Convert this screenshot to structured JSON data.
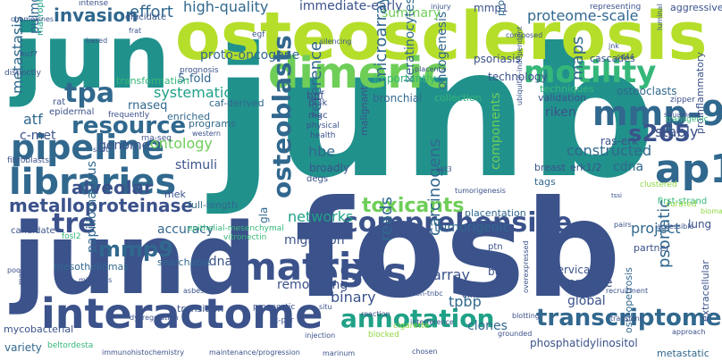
{
  "palette": {
    "dark_purple": "#440154",
    "indigo": "#3b528b",
    "blue": "#31688e",
    "teal": "#21918c",
    "green": "#35b779",
    "lime": "#90d743",
    "yellow": "#d6e21a"
  },
  "words": [
    {
      "text": "junb",
      "color": "#21918c"
    },
    {
      "text": "fosb",
      "color": "#3b528b"
    },
    {
      "text": "jun",
      "color": "#21918c"
    },
    {
      "text": "osteosclerosis",
      "color": "#b5de2b"
    },
    {
      "text": "jund",
      "color": "#3b528b"
    },
    {
      "text": "dimeric",
      "color": "#6ece58"
    },
    {
      "text": "motility",
      "color": "#35b779"
    },
    {
      "text": "pipeline",
      "color": "#31688e"
    },
    {
      "text": "libraries",
      "color": "#31688e"
    },
    {
      "text": "interactome",
      "color": "#3b528b"
    },
    {
      "text": "ests",
      "color": "#3b528b"
    },
    {
      "text": "matrix",
      "color": "#3b528b"
    },
    {
      "text": "comprehensive",
      "color": "#3b528b"
    },
    {
      "text": "annotation",
      "color": "#1fa187"
    },
    {
      "text": "transcriptome",
      "color": "#31688e"
    },
    {
      "text": "mmp-9",
      "color": "#31688e"
    },
    {
      "text": "ap1",
      "color": "#31688e"
    },
    {
      "text": "s265",
      "color": "#3b528b"
    },
    {
      "text": "tpa",
      "color": "#31688e"
    },
    {
      "text": "resource",
      "color": "#31688e"
    },
    {
      "text": "tre",
      "color": "#3b528b"
    },
    {
      "text": "mmp9",
      "color": "#31688e"
    },
    {
      "text": "osteoblasts",
      "color": "#31688e"
    },
    {
      "text": "metalloproteinase",
      "color": "#3b528b"
    },
    {
      "text": "alveolar",
      "color": "#3b528b"
    },
    {
      "text": "invasion",
      "color": "#31688e"
    },
    {
      "text": "effort",
      "color": "#31688e"
    },
    {
      "text": "high-quality",
      "color": "#31688e"
    },
    {
      "text": "immediate-early",
      "color": "#3b528b"
    },
    {
      "text": "proteome-scale",
      "color": "#31688e"
    },
    {
      "text": "aggressive",
      "color": "#3b528b"
    },
    {
      "text": "summary",
      "color": "#6ece58"
    },
    {
      "text": "proto-oncogene",
      "color": "#31688e"
    },
    {
      "text": "systematic",
      "color": "#1fa187"
    },
    {
      "text": "rnaseq",
      "color": "#31688e"
    },
    {
      "text": "ontology",
      "color": "#6ece58"
    },
    {
      "text": "genome",
      "color": "#3b528b"
    },
    {
      "text": "stimuli",
      "color": "#3b528b"
    },
    {
      "text": "atf",
      "color": "#31688e"
    },
    {
      "text": "metastasis",
      "color": "#31688e"
    },
    {
      "text": "c-met",
      "color": "#3b528b"
    },
    {
      "text": "pulmonary",
      "color": "#31688e"
    },
    {
      "text": "riken",
      "color": "#3b528b"
    },
    {
      "text": "stably",
      "color": "#3b528b"
    },
    {
      "text": "constructed",
      "color": "#31688e"
    },
    {
      "text": "ras-erk",
      "color": "#3b528b"
    },
    {
      "text": "maps",
      "color": "#31688e"
    },
    {
      "text": "microarray",
      "color": "#31688e"
    },
    {
      "text": "oncogenesis",
      "color": "#31688e"
    },
    {
      "text": "keratinocytes",
      "color": "#31688e"
    },
    {
      "text": "hbe",
      "color": "#31688e"
    },
    {
      "text": "reference",
      "color": "#31688e"
    },
    {
      "text": "broadly",
      "color": "#3b528b"
    },
    {
      "text": "networks",
      "color": "#1fa187"
    },
    {
      "text": "migration",
      "color": "#3b528b"
    },
    {
      "text": "toxicants",
      "color": "#6ece58"
    },
    {
      "text": "reads",
      "color": "#31688e"
    },
    {
      "text": "carcinogens",
      "color": "#31688e"
    },
    {
      "text": "array",
      "color": "#3b528b"
    },
    {
      "text": "binary",
      "color": "#3b528b"
    },
    {
      "text": "tpbp",
      "color": "#31688e"
    },
    {
      "text": "psoriatic",
      "color": "#31688e"
    },
    {
      "text": "project",
      "color": "#31688e"
    },
    {
      "text": "cdna",
      "color": "#31688e"
    },
    {
      "text": "accuracy",
      "color": "#31688e"
    },
    {
      "text": "remodeling",
      "color": "#3b528b"
    },
    {
      "text": "tumorigenic",
      "color": "#31688e"
    },
    {
      "text": "papillomavirus",
      "color": "#31688e"
    },
    {
      "text": "cdnas",
      "color": "#3b528b"
    },
    {
      "text": "bronchial",
      "color": "#31688e"
    },
    {
      "text": "gla",
      "color": "#31688e"
    },
    {
      "text": "clones",
      "color": "#31688e"
    },
    {
      "text": "variety",
      "color": "#31688e"
    },
    {
      "text": "osteoclasts",
      "color": "#31688e"
    },
    {
      "text": "5-fold",
      "color": "#31688e"
    },
    {
      "text": "hpf",
      "color": "#3b528b"
    },
    {
      "text": "mek",
      "color": "#3b528b"
    },
    {
      "text": "malignant",
      "color": "#3b528b"
    },
    {
      "text": "components",
      "color": "#6ece58"
    },
    {
      "text": "lung",
      "color": "#3b528b"
    },
    {
      "text": "cervical",
      "color": "#3b528b"
    },
    {
      "text": "precise",
      "color": "#3b528b"
    },
    {
      "text": "global",
      "color": "#3b528b"
    },
    {
      "text": "build",
      "color": "#3b528b"
    },
    {
      "text": "phosphatidylinositol",
      "color": "#3b528b"
    },
    {
      "text": "transition",
      "color": "#3b528b"
    },
    {
      "text": "mesotheliomas",
      "color": "#31688e"
    },
    {
      "text": "searchable",
      "color": "#31688e"
    },
    {
      "text": "mycobacterial",
      "color": "#3b528b"
    },
    {
      "text": "full-length",
      "color": "#31688e"
    },
    {
      "text": "extracellular",
      "color": "#3b528b"
    },
    {
      "text": "proinflammatory",
      "color": "#3b528b"
    },
    {
      "text": "osteopetrosis",
      "color": "#31688e"
    },
    {
      "text": "metastatic",
      "color": "#31688e"
    },
    {
      "text": "mmp1",
      "color": "#3b528b"
    },
    {
      "text": "technology",
      "color": "#3b528b"
    },
    {
      "text": "placentation",
      "color": "#31688e"
    },
    {
      "text": "collection",
      "color": "#35b779"
    },
    {
      "text": "validation",
      "color": "#3b528b"
    },
    {
      "text": "techniques",
      "color": "#35b779"
    },
    {
      "text": "importantly",
      "color": "#35b779"
    },
    {
      "text": "psoriasis",
      "color": "#3b528b"
    },
    {
      "text": "cascades",
      "color": "#3b528b"
    },
    {
      "text": "profiles",
      "color": "#31688e"
    },
    {
      "text": "erk1/2",
      "color": "#3b528b"
    },
    {
      "text": "breast",
      "color": "#3b528b"
    },
    {
      "text": "tags",
      "color": "#31688e"
    },
    {
      "text": "partner",
      "color": "#3b528b"
    },
    {
      "text": "kegg",
      "color": "#3b528b"
    },
    {
      "text": "ptn",
      "color": "#3b528b"
    },
    {
      "text": "elk1",
      "color": "#3b528b"
    },
    {
      "text": "transformation",
      "color": "#35b779"
    },
    {
      "text": "enriched",
      "color": "#31688e"
    },
    {
      "text": "programs",
      "color": "#31688e"
    },
    {
      "text": "epidermal",
      "color": "#3b528b"
    },
    {
      "text": "macrophages",
      "color": "#1fa187"
    },
    {
      "text": "candidate",
      "color": "#3b528b"
    },
    {
      "text": "fibroblasts",
      "color": "#3b528b"
    },
    {
      "text": "distinctly",
      "color": "#3b528b"
    },
    {
      "text": "rat",
      "color": "#3b528b"
    },
    {
      "text": "prognosis",
      "color": "#3b528b"
    },
    {
      "text": "egf",
      "color": "#3b528b"
    },
    {
      "text": "caf-derived",
      "color": "#31688e"
    },
    {
      "text": "pi3k",
      "color": "#3b528b"
    },
    {
      "text": "mgc",
      "color": "#3b528b"
    },
    {
      "text": "degs",
      "color": "#3b528b"
    },
    {
      "text": "physical",
      "color": "#3b528b"
    },
    {
      "text": "health",
      "color": "#3b528b"
    },
    {
      "text": "silencing",
      "color": "#3b528b"
    },
    {
      "text": "placenta",
      "color": "#3b528b"
    },
    {
      "text": "injury",
      "color": "#3b528b"
    },
    {
      "text": "chemokines",
      "color": "#3b528b"
    },
    {
      "text": "elucidate",
      "color": "#3b528b"
    },
    {
      "text": "intense",
      "color": "#3b528b"
    },
    {
      "text": "based",
      "color": "#3b528b"
    },
    {
      "text": "composed",
      "color": "#3b528b"
    },
    {
      "text": "jnk",
      "color": "#3b528b"
    },
    {
      "text": "cd44",
      "color": "#3b528b"
    },
    {
      "text": "representing",
      "color": "#3b528b"
    },
    {
      "text": "luminal",
      "color": "#3b528b"
    },
    {
      "text": "zipper",
      "color": "#3b528b"
    },
    {
      "text": "western",
      "color": "#3b528b"
    },
    {
      "text": "frequently",
      "color": "#3b528b"
    },
    {
      "text": "rt-pcr",
      "color": "#3b528b"
    },
    {
      "text": "prognostic",
      "color": "#3b528b"
    },
    {
      "text": "situ",
      "color": "#3b528b"
    },
    {
      "text": "injection",
      "color": "#3b528b"
    },
    {
      "text": "immunohistochemistry",
      "color": "#3b528b"
    },
    {
      "text": "maintenance/progression",
      "color": "#3b528b"
    },
    {
      "text": "marinum",
      "color": "#3b528b"
    },
    {
      "text": "reaction",
      "color": "#3b528b"
    },
    {
      "text": "interference",
      "color": "#3b528b"
    },
    {
      "text": "blotting",
      "color": "#3b528b"
    },
    {
      "text": "non-tnbc",
      "color": "#3b528b"
    },
    {
      "text": "approach",
      "color": "#3b528b"
    },
    {
      "text": "transient",
      "color": "#3b528b"
    },
    {
      "text": "recruitment",
      "color": "#3b528b"
    },
    {
      "text": "chosen",
      "color": "#3b528b"
    },
    {
      "text": "pairs",
      "color": "#3b528b"
    },
    {
      "text": "asbestos",
      "color": "#3b528b"
    },
    {
      "text": "mitogens",
      "color": "#3b528b"
    },
    {
      "text": "accessible",
      "color": "#3b528b"
    },
    {
      "text": "grounded",
      "color": "#3b528b"
    },
    {
      "text": "ubiquitin-independent",
      "color": "#3b528b"
    },
    {
      "text": "tumorigenesis",
      "color": "#3b528b"
    },
    {
      "text": "overexpressed",
      "color": "#3b528b"
    },
    {
      "text": "akt3",
      "color": "#3b528b"
    },
    {
      "text": "tssi",
      "color": "#3b528b"
    },
    {
      "text": "squamous",
      "color": "#3b528b"
    },
    {
      "text": "transgenic",
      "color": "#35b779"
    },
    {
      "text": "first-strand",
      "color": "#35b779"
    },
    {
      "text": "vitronectin",
      "color": "#35b779"
    },
    {
      "text": "epithelial-mesenchymal",
      "color": "#35b779"
    },
    {
      "text": "beltordesta",
      "color": "#35b779"
    },
    {
      "text": "fosl2",
      "color": "#35b779"
    },
    {
      "text": "blocked",
      "color": "#90d743"
    },
    {
      "text": "clustered",
      "color": "#90d743"
    },
    {
      "text": "curated",
      "color": "#90d743"
    },
    {
      "text": "biomarker",
      "color": "#90d743"
    },
    {
      "text": "cigarette",
      "color": "#90d743"
    },
    {
      "text": "dysregulation",
      "color": "#3b528b"
    },
    {
      "text": "rna-seq",
      "color": "#3b528b"
    },
    {
      "text": "mcf7",
      "color": "#3b528b"
    },
    {
      "text": "frat",
      "color": "#3b528b"
    },
    {
      "text": "shift",
      "color": "#3b528b"
    },
    {
      "text": "poor",
      "color": "#3b528b"
    },
    {
      "text": "mgp",
      "color": "#3b528b"
    },
    {
      "text": "microscopy",
      "color": "#3b528b"
    }
  ]
}
